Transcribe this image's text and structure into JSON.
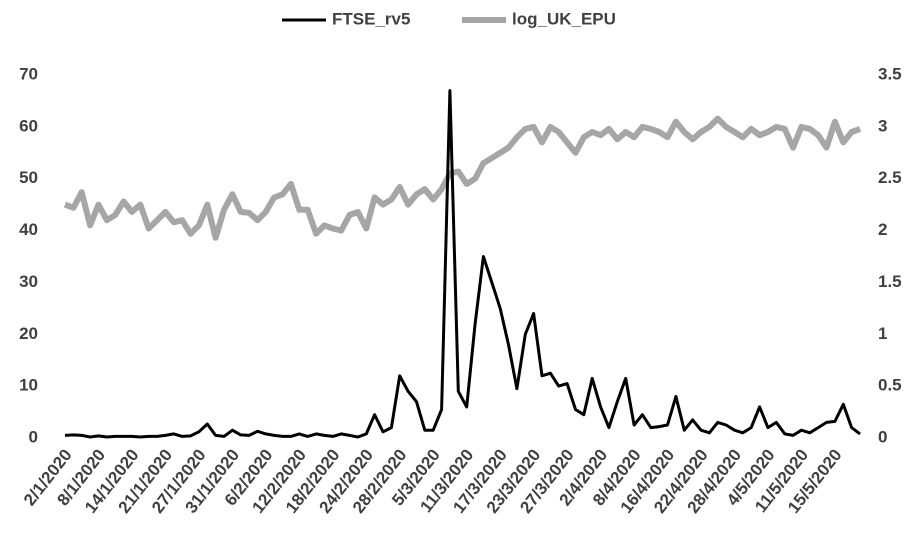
{
  "chart_data": {
    "type": "line",
    "legend": "top",
    "categories": [
      "2/1/2020",
      null,
      null,
      null,
      "8/1/2020",
      null,
      null,
      null,
      "14/1/2020",
      null,
      null,
      null,
      "21/1/2020",
      null,
      null,
      null,
      "27/1/2020",
      null,
      null,
      null,
      "31/1/2020",
      null,
      null,
      null,
      "6/2/2020",
      null,
      null,
      null,
      "12/2/2020",
      null,
      null,
      null,
      "18/2/2020",
      null,
      null,
      null,
      "24/2/2020",
      null,
      null,
      null,
      "28/2/2020",
      null,
      null,
      null,
      "5/3/2020",
      null,
      null,
      null,
      "11/3/2020",
      null,
      null,
      null,
      "17/3/2020",
      null,
      null,
      null,
      "23/3/2020",
      null,
      null,
      null,
      "27/3/2020",
      null,
      null,
      null,
      "2/4/2020",
      null,
      null,
      null,
      "8/4/2020",
      null,
      null,
      null,
      "16/4/2020",
      null,
      null,
      null,
      "22/4/2020",
      null,
      null,
      null,
      "28/4/2020",
      null,
      null,
      null,
      "4/5/2020",
      null,
      null,
      null,
      "11/5/2020",
      null,
      null,
      null,
      "15/5/2020",
      null,
      null,
      null
    ],
    "series": [
      {
        "name": "FTSE_rv5",
        "color": "#000000",
        "values": [
          0.5,
          0.6,
          0.5,
          0.2,
          0.4,
          0.2,
          0.3,
          0.3,
          0.3,
          0.2,
          0.3,
          0.3,
          0.5,
          0.8,
          0.3,
          0.4,
          1.2,
          2.7,
          0.5,
          0.3,
          1.5,
          0.6,
          0.5,
          1.3,
          0.8,
          0.5,
          0.3,
          0.3,
          0.8,
          0.3,
          0.8,
          0.5,
          0.3,
          0.8,
          0.5,
          0.2,
          0.8,
          4.5,
          1.2,
          2,
          12,
          9,
          7,
          1.5,
          1.5,
          5.5,
          67,
          9,
          6,
          22,
          35,
          30,
          25,
          18,
          9.5,
          20,
          24,
          12,
          12.5,
          10,
          10.5,
          5.5,
          4.5,
          11.5,
          6,
          2,
          7,
          11.5,
          2.5,
          4.5,
          2,
          2.2,
          2.5,
          8,
          1.5,
          3.5,
          1.5,
          1,
          3,
          2.5,
          1.5,
          1,
          2,
          6,
          2,
          3,
          0.8,
          0.5,
          1.5,
          1,
          2,
          3,
          3.2,
          6.5,
          2,
          0.8
        ]
      },
      {
        "name": "log_UK_EPU",
        "color": "#a6a6a6",
        "axis": "y2",
        "values": [
          2.25,
          2.22,
          2.37,
          2.05,
          2.25,
          2.1,
          2.15,
          2.28,
          2.18,
          2.25,
          2.02,
          2.1,
          2.18,
          2.08,
          2.1,
          1.97,
          2.05,
          2.25,
          1.93,
          2.2,
          2.35,
          2.18,
          2.17,
          2.1,
          2.18,
          2.32,
          2.35,
          2.45,
          2.2,
          2.2,
          1.97,
          2.05,
          2.02,
          2.0,
          2.15,
          2.18,
          2.02,
          2.32,
          2.25,
          2.3,
          2.42,
          2.25,
          2.35,
          2.4,
          2.3,
          2.4,
          2.55,
          2.57,
          2.45,
          2.5,
          2.65,
          2.7,
          2.75,
          2.8,
          2.9,
          2.98,
          3.0,
          2.85,
          3.0,
          2.95,
          2.85,
          2.75,
          2.9,
          2.95,
          2.92,
          2.98,
          2.88,
          2.95,
          2.9,
          3.0,
          2.98,
          2.95,
          2.9,
          3.05,
          2.95,
          2.88,
          2.95,
          3.0,
          3.08,
          3.0,
          2.95,
          2.9,
          2.98,
          2.92,
          2.95,
          3.0,
          2.98,
          2.8,
          3.0,
          2.98,
          2.92,
          2.8,
          3.05,
          2.85,
          2.95,
          2.98
        ]
      }
    ],
    "ylim": [
      0,
      70
    ],
    "yticks": [
      0,
      10,
      20,
      30,
      40,
      50,
      60,
      70
    ],
    "y2lim": [
      0,
      3.5
    ],
    "y2ticks": [
      0,
      0.5,
      1,
      1.5,
      2,
      2.5,
      3,
      3.5
    ]
  }
}
